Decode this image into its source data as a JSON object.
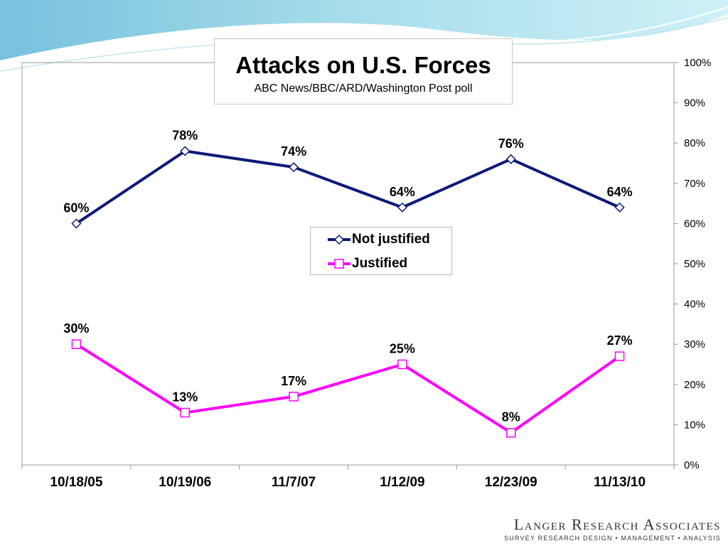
{
  "chart_data": {
    "type": "line",
    "title": "Attacks on U.S. Forces",
    "subtitle": "ABC News/BBC/ARD/Washington Post poll",
    "categories": [
      "10/18/05",
      "10/19/06",
      "11/7/07",
      "1/12/09",
      "12/23/09",
      "11/13/10"
    ],
    "series": [
      {
        "name": "Not justified",
        "values": [
          60,
          78,
          74,
          64,
          76,
          64
        ],
        "color": "#0d1a7a",
        "marker": "diamond"
      },
      {
        "name": "Justified",
        "values": [
          30,
          13,
          17,
          25,
          8,
          27
        ],
        "color": "#ff00ff",
        "marker": "square"
      }
    ],
    "ylim": [
      0,
      100
    ],
    "yticks": [
      "0%",
      "10%",
      "20%",
      "30%",
      "40%",
      "50%",
      "60%",
      "70%",
      "80%",
      "90%",
      "100%"
    ],
    "y_axis_side": "right",
    "value_suffix": "%",
    "legend_position": "center"
  },
  "footer": {
    "brand": "Langer Research Associates",
    "tagline": "SURVEY RESEARCH DESIGN • MANAGEMENT • ANALYSIS"
  }
}
